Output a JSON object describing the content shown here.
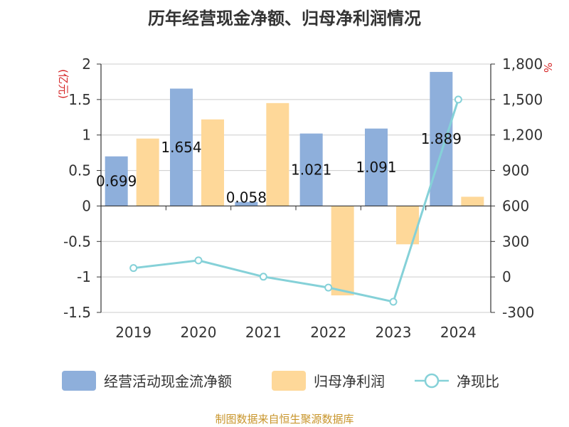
{
  "chart_data": {
    "type": "bar+line",
    "title": "历年经营现金净额、归母净利润情况",
    "categories": [
      "2019",
      "2020",
      "2021",
      "2022",
      "2023",
      "2024"
    ],
    "left_axis": {
      "unit": "(亿元)",
      "ylim": [
        -1.5,
        2
      ],
      "ticks": [
        2,
        1.5,
        1,
        0.5,
        0,
        -0.5,
        -1,
        -1.5
      ],
      "tick_labels": [
        "2",
        "1.5",
        "1",
        "0.5",
        "0",
        "-0.5",
        "-1",
        "-1.5"
      ]
    },
    "right_axis": {
      "unit": "%",
      "ylim": [
        -300,
        1800
      ],
      "ticks": [
        1800,
        1500,
        1200,
        900,
        600,
        300,
        0,
        -300
      ],
      "tick_labels": [
        "1,800",
        "1,500",
        "1,200",
        "900",
        "600",
        "300",
        "0",
        "-300"
      ]
    },
    "series": [
      {
        "name": "经营活动现金流净额",
        "type": "bar",
        "axis": "left",
        "color": "#8eafdb",
        "values": [
          0.699,
          1.654,
          0.058,
          1.021,
          1.091,
          1.889
        ],
        "labels": [
          "0.699",
          "1.654",
          "0.058",
          "1.021",
          "1.091",
          "1.889"
        ]
      },
      {
        "name": "归母净利润",
        "type": "bar",
        "axis": "left",
        "color": "#fed899",
        "values": [
          0.95,
          1.22,
          1.45,
          -1.26,
          -0.54,
          0.13
        ]
      },
      {
        "name": "净现比",
        "type": "line",
        "axis": "right",
        "color": "#85d1d8",
        "values": [
          75,
          140,
          2,
          -90,
          -210,
          1500
        ]
      }
    ],
    "legend_position": "bottom"
  },
  "colors": {
    "unit": "#d62728",
    "source": "#c8952b",
    "axis": "#333333",
    "grid": "#cccccc"
  },
  "source_note": "制图数据来自恒生聚源数据库"
}
